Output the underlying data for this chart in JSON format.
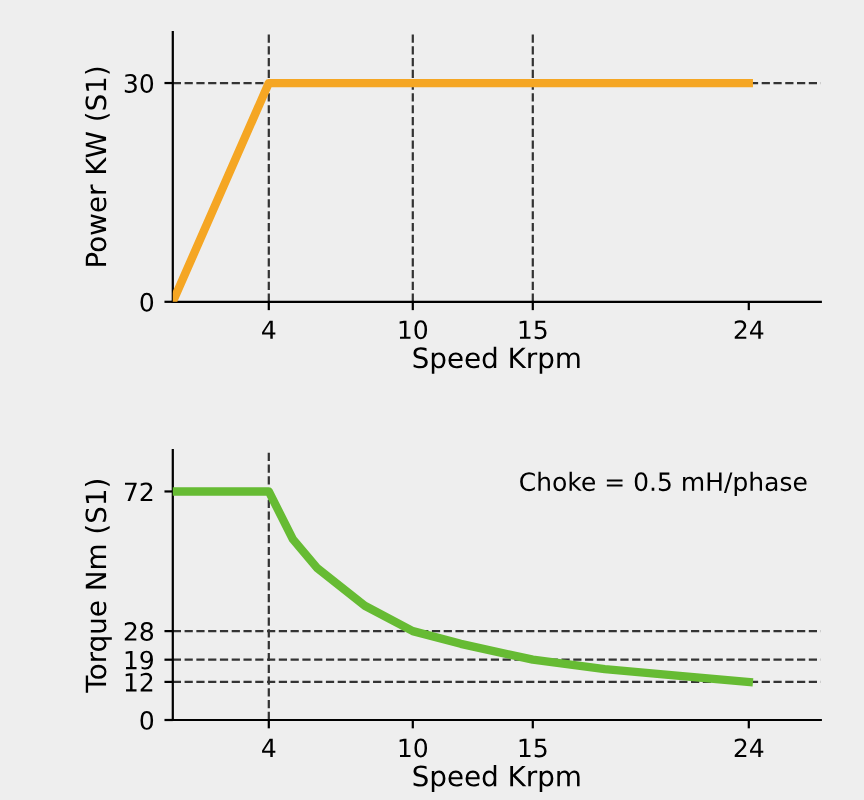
{
  "chart_data": [
    {
      "type": "line",
      "xlabel": "Speed Krpm",
      "ylabel": "Power KW (S1)",
      "x": [
        0,
        4,
        24
      ],
      "series": [
        {
          "color": "#f5a623",
          "values": [
            0,
            30,
            30
          ]
        }
      ],
      "xlim": [
        0,
        27
      ],
      "ylim": [
        0,
        37
      ],
      "xticks": [
        4,
        10,
        15,
        24
      ],
      "yticks": [
        0,
        30
      ],
      "ref_lines": [
        {
          "axis": "y",
          "value": 30,
          "line_style": "dashed",
          "color": "#333333"
        },
        {
          "axis": "x",
          "value": 4,
          "line_style": "dashed",
          "color": "#333333"
        },
        {
          "axis": "x",
          "value": 10,
          "line_style": "dashed",
          "color": "#333333"
        },
        {
          "axis": "x",
          "value": 15,
          "line_style": "dashed",
          "color": "#333333"
        }
      ],
      "grid": false,
      "legend": false,
      "marker": "none",
      "line_style": "solid"
    },
    {
      "type": "line",
      "xlabel": "Speed Krpm",
      "ylabel": "Torque Nm (S1)",
      "x": [
        0,
        4,
        5,
        6,
        8,
        10,
        12,
        15,
        18,
        21,
        24
      ],
      "series": [
        {
          "color": "#66bb33",
          "values": [
            72,
            72,
            57,
            48,
            36,
            28,
            24,
            19,
            16,
            14,
            12
          ]
        }
      ],
      "xlim": [
        0,
        27
      ],
      "ylim": [
        0,
        85
      ],
      "xticks": [
        4,
        10,
        15,
        24
      ],
      "yticks": [
        0,
        12,
        19,
        28,
        72
      ],
      "ref_lines": [
        {
          "axis": "x",
          "value": 4,
          "line_style": "dashed",
          "color": "#333333"
        },
        {
          "axis": "y",
          "value": 28,
          "line_style": "dashed",
          "color": "#333333"
        },
        {
          "axis": "y",
          "value": 19,
          "line_style": "dashed",
          "color": "#333333"
        },
        {
          "axis": "y",
          "value": 12,
          "line_style": "dashed",
          "color": "#333333"
        }
      ],
      "annotations": [
        "Choke = 0.5 mH/phase"
      ],
      "grid": false,
      "legend": false,
      "marker": "none",
      "line_style": "solid"
    }
  ]
}
